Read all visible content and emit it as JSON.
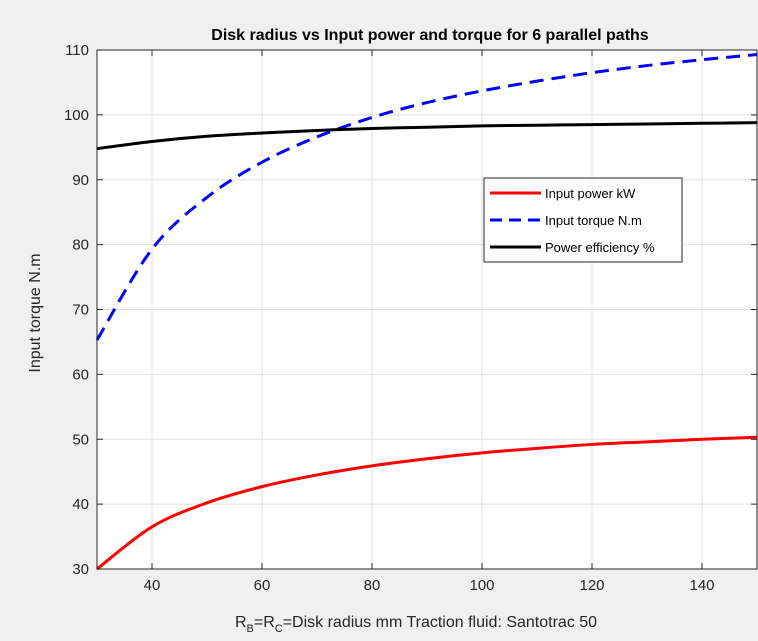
{
  "chart_data": {
    "type": "line",
    "title": "Disk radius vs Input power and torque for 6 parallel paths",
    "xlabel_parts": {
      "r1": "R",
      "sub1": "B",
      "eq": "=R",
      "sub2": "C",
      "rest": "=Disk radius mm    Traction fluid: Santotrac 50"
    },
    "ylabel": "Input torque N.m",
    "xlim": [
      30,
      150
    ],
    "ylim": [
      30,
      110
    ],
    "xticks": [
      40,
      60,
      80,
      100,
      120,
      140
    ],
    "yticks": [
      30,
      40,
      50,
      60,
      70,
      80,
      90,
      100,
      110
    ],
    "grid": true,
    "legend_position": "right-middle",
    "x": [
      30,
      40,
      50,
      60,
      70,
      80,
      90,
      100,
      110,
      120,
      130,
      140,
      150
    ],
    "series": [
      {
        "name": "Input power kW",
        "color": "#ff0000",
        "style": "solid",
        "values": [
          30.0,
          36.5,
          40.2,
          42.7,
          44.5,
          45.9,
          47.0,
          47.9,
          48.6,
          49.2,
          49.6,
          50.0,
          50.3
        ]
      },
      {
        "name": "Input torque N.m",
        "color": "#0000ff",
        "style": "dashed",
        "values": [
          65.3,
          79.3,
          87.3,
          92.7,
          96.6,
          99.6,
          101.9,
          103.7,
          105.2,
          106.5,
          107.6,
          108.5,
          109.3
        ]
      },
      {
        "name": "Power efficiency %",
        "color": "#000000",
        "style": "solid",
        "values": [
          94.8,
          95.9,
          96.7,
          97.2,
          97.6,
          97.9,
          98.1,
          98.3,
          98.4,
          98.5,
          98.6,
          98.7,
          98.8
        ]
      }
    ]
  }
}
